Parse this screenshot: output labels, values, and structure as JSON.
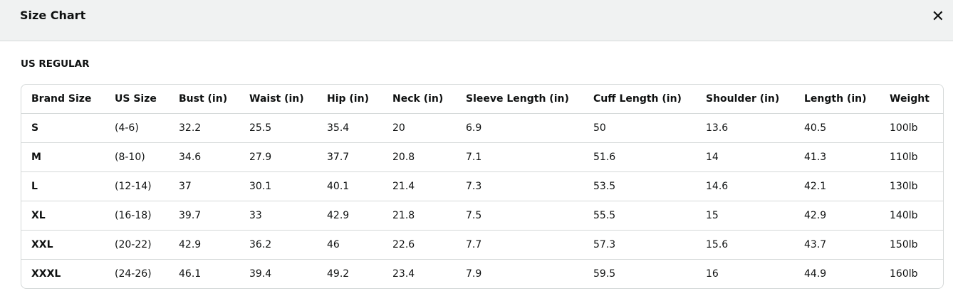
{
  "header": {
    "title": "Size Chart",
    "close_icon": "close-icon"
  },
  "section_title": "US REGULAR",
  "table": {
    "columns": [
      "Brand Size",
      "US Size",
      "Bust (in)",
      "Waist (in)",
      "Hip (in)",
      "Neck (in)",
      "Sleeve Length (in)",
      "Cuff Length (in)",
      "Shoulder (in)",
      "Length (in)",
      "Weight"
    ],
    "rows": [
      [
        "S",
        "(4-6)",
        "32.2",
        "25.5",
        "35.4",
        "20",
        "6.9",
        "50",
        "13.6",
        "40.5",
        "100lb"
      ],
      [
        "M",
        "(8-10)",
        "34.6",
        "27.9",
        "37.7",
        "20.8",
        "7.1",
        "51.6",
        "14",
        "41.3",
        "110lb"
      ],
      [
        "L",
        "(12-14)",
        "37",
        "30.1",
        "40.1",
        "21.4",
        "7.3",
        "53.5",
        "14.6",
        "42.1",
        "130lb"
      ],
      [
        "XL",
        "(16-18)",
        "39.7",
        "33",
        "42.9",
        "21.8",
        "7.5",
        "55.5",
        "15",
        "42.9",
        "140lb"
      ],
      [
        "XXL",
        "(20-22)",
        "42.9",
        "36.2",
        "46",
        "22.6",
        "7.7",
        "57.3",
        "15.6",
        "43.7",
        "150lb"
      ],
      [
        "XXXL",
        "(24-26)",
        "46.1",
        "39.4",
        "49.2",
        "23.4",
        "7.9",
        "59.5",
        "16",
        "44.9",
        "160lb"
      ]
    ]
  }
}
